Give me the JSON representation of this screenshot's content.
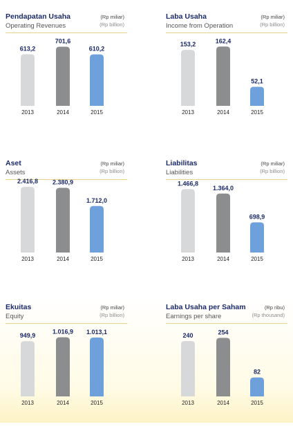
{
  "colors": {
    "bar_2013": "#d7d8d9",
    "bar_2014": "#8c8d8f",
    "bar_2015": "#6ea1dc",
    "value_text": "#1b2a6b",
    "rule": "#e8d28a"
  },
  "chart_data": [
    {
      "type": "bar",
      "title": "Pendapatan Usaha",
      "subtitle": "Operating Revenues",
      "unit_id": "(Rp miliar)",
      "unit_en": "(Rp billion)",
      "categories": [
        "2013",
        "2014",
        "2015"
      ],
      "values": [
        613.2,
        701.6,
        610.2
      ],
      "value_labels": [
        "613,2",
        "701,6",
        "610,2"
      ],
      "ylim": [
        0,
        780
      ]
    },
    {
      "type": "bar",
      "title": "Laba Usaha",
      "subtitle": "Income from Operation",
      "unit_id": "(Rp miliar)",
      "unit_en": "(Rp billion)",
      "categories": [
        "2013",
        "2014",
        "2015"
      ],
      "values": [
        153.2,
        162.4,
        52.1
      ],
      "value_labels": [
        "153,2",
        "162,4",
        "52,1"
      ],
      "ylim": [
        0,
        180
      ]
    },
    {
      "type": "bar",
      "title": "Aset",
      "subtitle": "Assets",
      "unit_id": "(Rp miliar)",
      "unit_en": "(Rp billion)",
      "categories": [
        "2013",
        "2014",
        "2015"
      ],
      "values": [
        2416.8,
        2380.9,
        1712.0
      ],
      "value_labels": [
        "2.416,8",
        "2.380,9",
        "1.712,0"
      ],
      "ylim": [
        0,
        2420
      ]
    },
    {
      "type": "bar",
      "title": "Liabilitas",
      "subtitle": "Liabilities",
      "unit_id": "(Rp miliar)",
      "unit_en": "(Rp billion)",
      "categories": [
        "2013",
        "2014",
        "2015"
      ],
      "values": [
        1466.8,
        1364.0,
        698.9
      ],
      "value_labels": [
        "1.466,8",
        "1.364,0",
        "698,9"
      ],
      "ylim": [
        0,
        1520
      ]
    },
    {
      "type": "bar",
      "title": "Ekuitas",
      "subtitle": "Equity",
      "unit_id": "(Rp miliar)",
      "unit_en": "(Rp billion)",
      "categories": [
        "2013",
        "2014",
        "2015"
      ],
      "values": [
        949.9,
        1016.9,
        1013.1
      ],
      "value_labels": [
        "949,9",
        "1.016,9",
        "1.013,1"
      ],
      "ylim": [
        0,
        1130
      ]
    },
    {
      "type": "bar",
      "title": "Laba Usaha per Saham",
      "subtitle": "Earnings per share",
      "unit_id": "(Rp ribu)",
      "unit_en": "(Rp thousand)",
      "categories": [
        "2013",
        "2014",
        "2015"
      ],
      "values": [
        240,
        254,
        82
      ],
      "value_labels": [
        "240",
        "254",
        "82"
      ],
      "ylim": [
        0,
        285
      ]
    }
  ]
}
